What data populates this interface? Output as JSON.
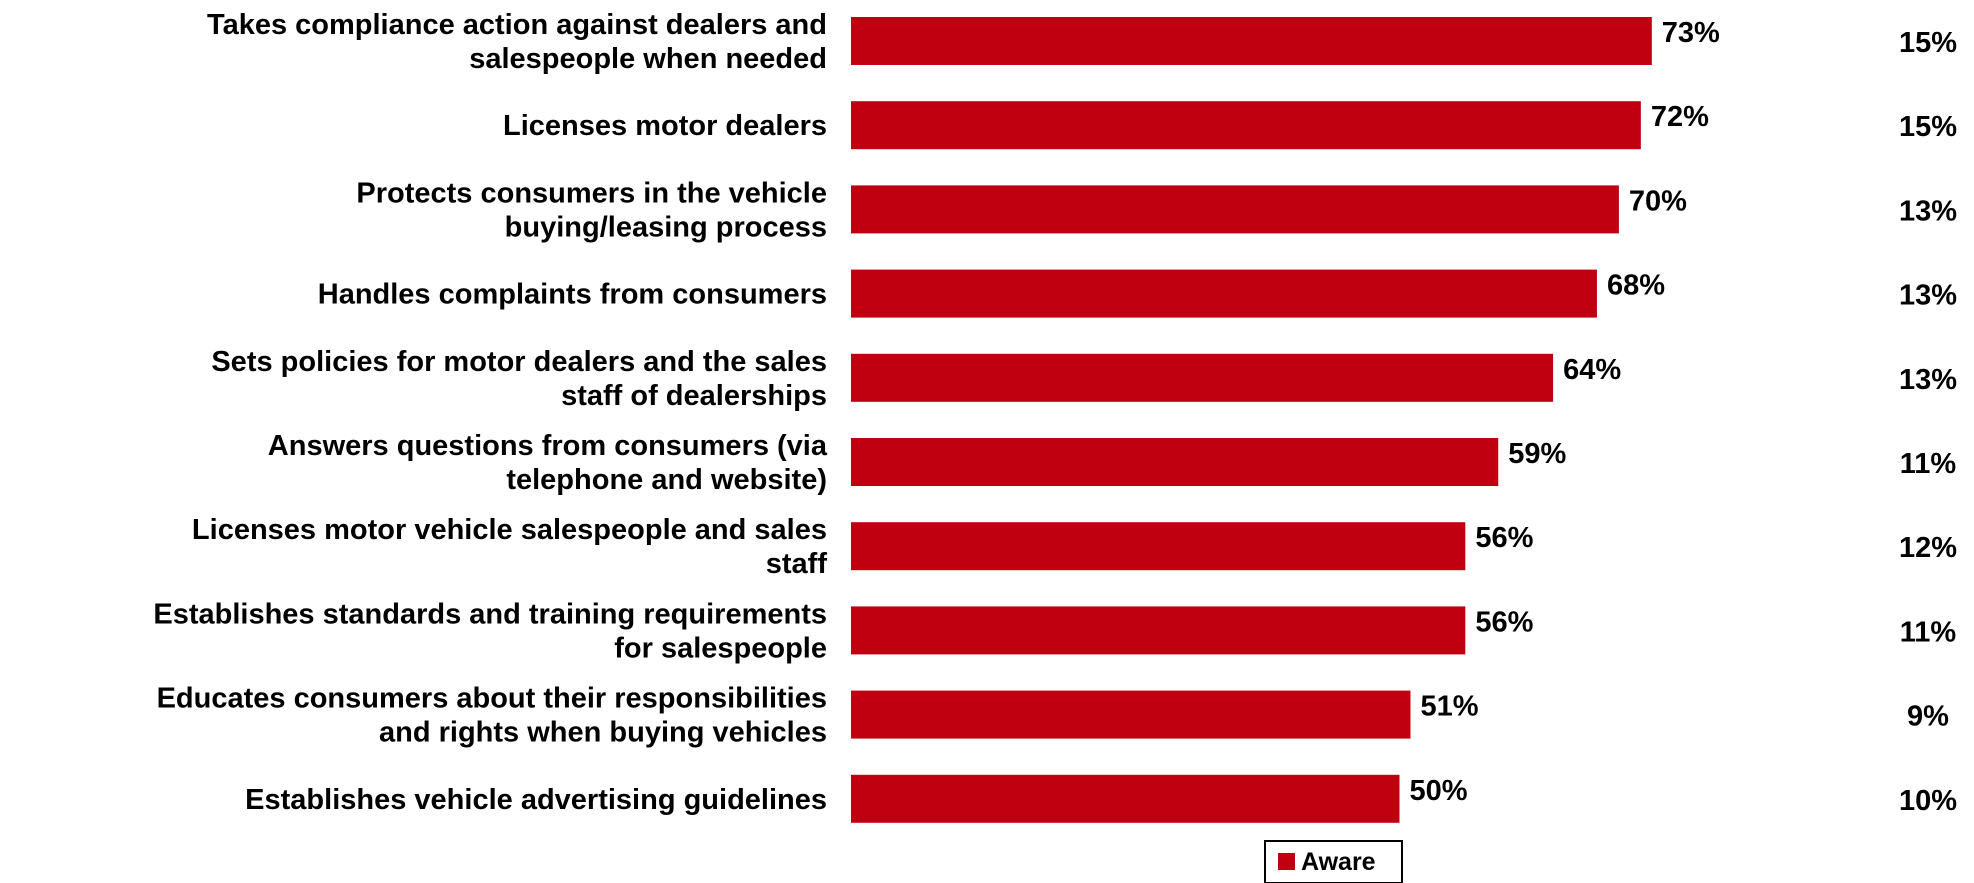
{
  "chart_data": {
    "type": "bar",
    "orientation": "horizontal",
    "categories": [
      [
        "Takes compliance action against dealers and",
        "salespeople when needed"
      ],
      [
        "Licenses motor dealers"
      ],
      [
        "Protects consumers in the vehicle",
        "buying/leasing process"
      ],
      [
        "Handles complaints from consumers"
      ],
      [
        "Sets policies for motor dealers and the sales",
        "staff of dealerships"
      ],
      [
        "Answers questions from consumers (via",
        "telephone and website)"
      ],
      [
        "Licenses motor vehicle salespeople and sales",
        "staff"
      ],
      [
        "Establishes standards and training requirements",
        "for salespeople"
      ],
      [
        "Educates consumers about their responsibilities",
        "and rights when buying vehicles"
      ],
      [
        "Establishes vehicle advertising guidelines"
      ]
    ],
    "series": [
      {
        "name": "Aware",
        "color": "#c00010",
        "values": [
          73,
          72,
          70,
          68,
          64,
          59,
          56,
          56,
          51,
          50
        ],
        "value_labels": [
          "73%",
          "72%",
          "70%",
          "68%",
          "64%",
          "59%",
          "56%",
          "56%",
          "51%",
          "50%"
        ]
      }
    ],
    "side_column": {
      "values": [
        15,
        15,
        13,
        13,
        13,
        11,
        12,
        11,
        9,
        10
      ],
      "labels": [
        "15%",
        "15%",
        "13%",
        "13%",
        "13%",
        "11%",
        "12%",
        "11%",
        "9%",
        "10%"
      ]
    },
    "xlim": [
      0,
      100
    ],
    "grid": false,
    "legend": {
      "position": "bottom-center",
      "entries": [
        "Aware"
      ]
    }
  }
}
